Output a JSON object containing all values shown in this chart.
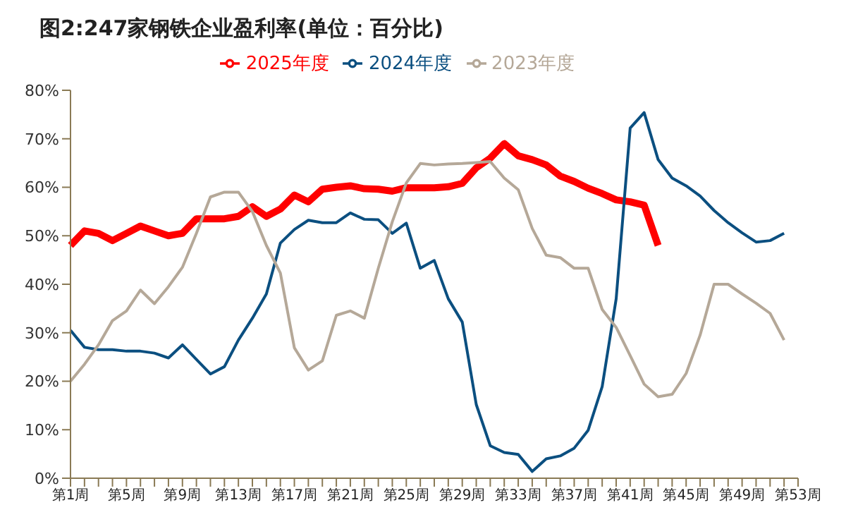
{
  "chart_data": {
    "type": "line",
    "title": "图2:247家钢铁企业盈利率(单位：百分比)",
    "categories": [
      "第1周",
      null,
      null,
      null,
      "第5周",
      null,
      null,
      null,
      "第9周",
      null,
      null,
      null,
      "第13周",
      null,
      null,
      null,
      "第17周",
      null,
      null,
      null,
      "第21周",
      null,
      null,
      null,
      "第25周",
      null,
      null,
      null,
      "第29周",
      null,
      null,
      null,
      "第33周",
      null,
      null,
      null,
      "第37周",
      null,
      null,
      null,
      "第41周",
      null,
      null,
      null,
      "第45周",
      null,
      null,
      null,
      "第49周",
      null,
      null,
      null,
      "第53周"
    ],
    "series": [
      {
        "name": "2025年度",
        "color": "#ff0000",
        "values": [
          48,
          51,
          50.5,
          49,
          50.5,
          52,
          51,
          50,
          50.5,
          53.5,
          53.5,
          53.5,
          54,
          56,
          54,
          55.5,
          58.4,
          57,
          59.6,
          60,
          60.3,
          59.7,
          59.6,
          59.2,
          59.9,
          59.9,
          59.9,
          60.1,
          60.8,
          64,
          66,
          69,
          66.5,
          65.7,
          64.6,
          62.3,
          61.2,
          59.8,
          58.7,
          57.4,
          57,
          56.3,
          48,
          null,
          null,
          null,
          null,
          null,
          null,
          null,
          null,
          null,
          null
        ]
      },
      {
        "name": "2024年度",
        "color": "#0b4f80",
        "values": [
          30.5,
          27,
          26.5,
          26.5,
          26.2,
          26.2,
          25.8,
          24.8,
          27.5,
          24.5,
          21.5,
          23,
          28.5,
          33,
          38,
          48.5,
          51.3,
          53.2,
          52.7,
          52.7,
          54.7,
          53.4,
          53.3,
          50.5,
          52.6,
          43.3,
          44.9,
          37,
          32.2,
          15.2,
          6.7,
          5.3,
          4.9,
          1.4,
          4,
          4.6,
          6.2,
          9.9,
          18.9,
          37,
          72.2,
          75.4,
          65.7,
          61.9,
          60.3,
          58.2,
          55.2,
          52.7,
          50.6,
          48.7,
          49,
          50.5,
          null
        ]
      },
      {
        "name": "2023年度",
        "color": "#b5a898",
        "values": [
          20,
          23.5,
          27.5,
          32.5,
          34.5,
          38.8,
          36,
          39.5,
          43.5,
          50.5,
          58,
          59,
          59,
          55,
          48,
          42.3,
          26.9,
          22.3,
          24.2,
          33.6,
          34.5,
          33,
          43.3,
          52.9,
          60.9,
          64.9,
          64.6,
          64.8,
          64.9,
          65.1,
          65.3,
          61.9,
          59.5,
          51.5,
          46,
          45.5,
          43.3,
          43.3,
          34.8,
          31.1,
          25.3,
          19.4,
          16.8,
          17.3,
          21.6,
          29.5,
          40,
          40,
          38,
          36.1,
          34,
          28.5,
          null
        ]
      }
    ],
    "ylim": [
      0,
      80
    ],
    "yticks": [
      {
        "value": 0,
        "label": "0%"
      },
      {
        "value": 10,
        "label": "10%"
      },
      {
        "value": 20,
        "label": "20%"
      },
      {
        "value": 30,
        "label": "30%"
      },
      {
        "value": 40,
        "label": "40%"
      },
      {
        "value": 50,
        "label": "50%"
      },
      {
        "value": 60,
        "label": "60%"
      },
      {
        "value": 70,
        "label": "70%"
      },
      {
        "value": 80,
        "label": "80%"
      }
    ],
    "grid": false,
    "legend": "top",
    "marker": "none",
    "line_style": "solid"
  }
}
